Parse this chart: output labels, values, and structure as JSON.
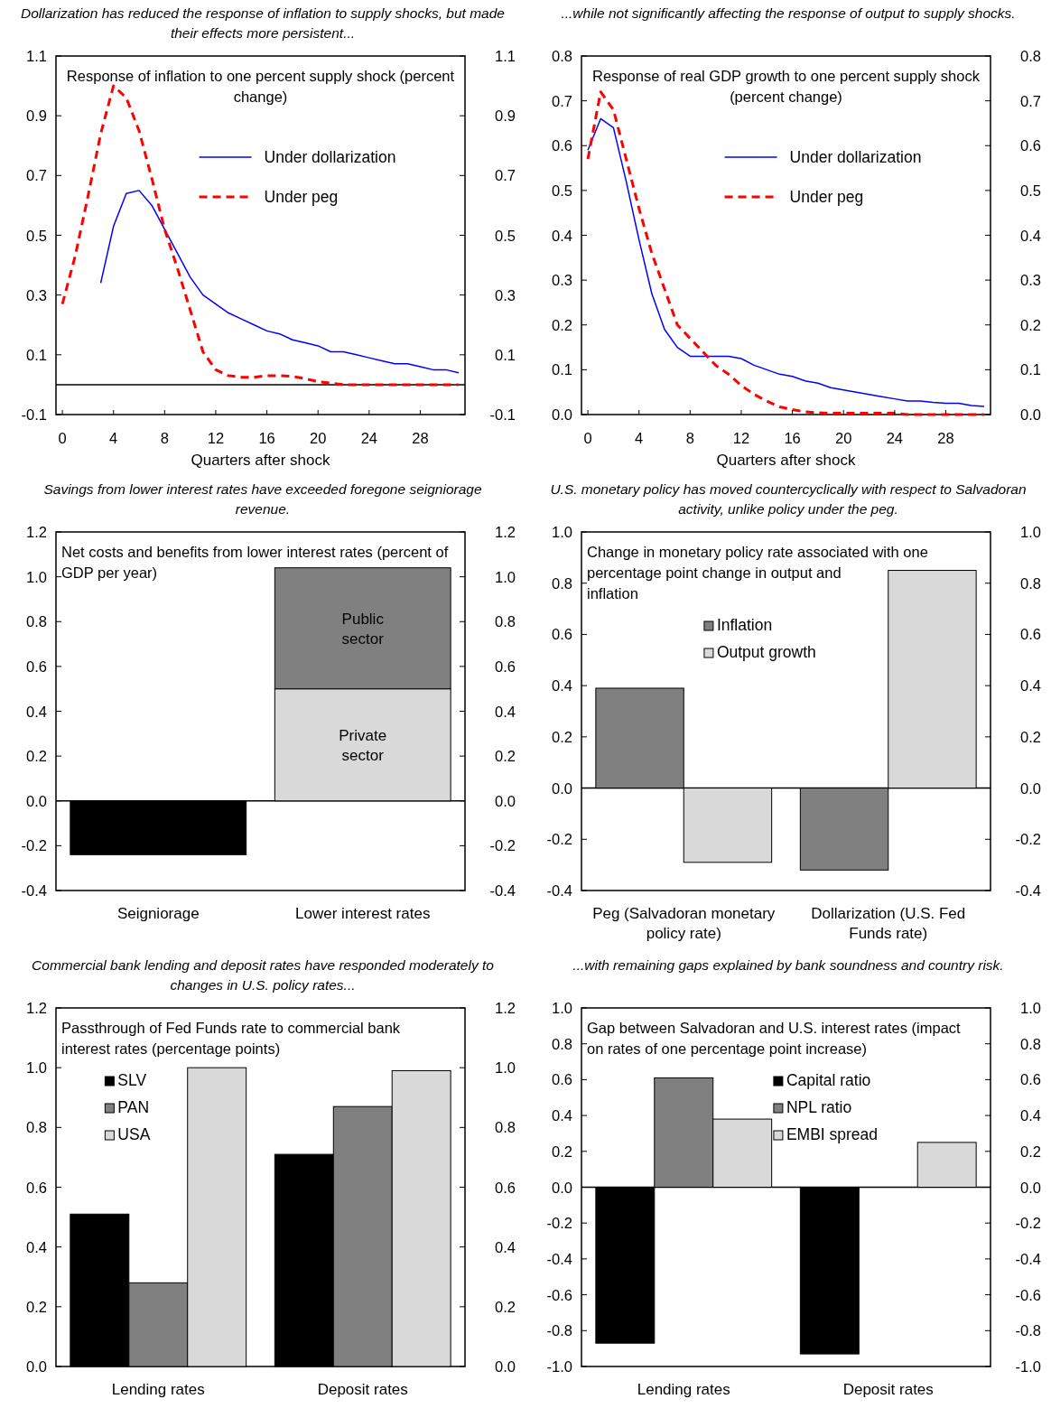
{
  "chart_data": [
    {
      "type": "line",
      "title": "Dollarization has reduced the response of inflation to supply shocks, but made their effects more persistent...",
      "subtitle": "Response of inflation to one percent supply shock (percent change)",
      "xlabel": "Quarters after shock",
      "xlim": [
        -0.5,
        31.5
      ],
      "xticks": [
        0,
        4,
        8,
        12,
        16,
        20,
        24,
        28
      ],
      "ylim": [
        -0.1,
        1.1
      ],
      "yticks": [
        -0.1,
        0.1,
        0.3,
        0.5,
        0.7,
        0.9,
        1.1
      ],
      "y2lim": [
        -0.1,
        1.1
      ],
      "y2ticks": [
        -0.1,
        0.1,
        0.3,
        0.5,
        0.7,
        0.9,
        1.1
      ],
      "legend": "top right",
      "x": [
        0,
        1,
        2,
        3,
        4,
        5,
        6,
        7,
        8,
        9,
        10,
        11,
        12,
        13,
        14,
        15,
        16,
        17,
        18,
        19,
        20,
        21,
        22,
        23,
        24,
        25,
        26,
        27,
        28,
        29,
        30,
        31
      ],
      "series": [
        {
          "name": "Under dollarization",
          "color": "#0000ff",
          "line_style": "solid",
          "values": [
            null,
            null,
            null,
            0.34,
            0.53,
            0.64,
            0.65,
            0.6,
            0.52,
            0.44,
            0.36,
            0.3,
            0.27,
            0.24,
            0.22,
            0.2,
            0.18,
            0.17,
            0.15,
            0.14,
            0.13,
            0.11,
            0.11,
            0.1,
            0.09,
            0.08,
            0.07,
            0.07,
            0.06,
            0.05,
            0.05,
            0.04
          ]
        },
        {
          "name": "Under peg",
          "color": "#ff0000",
          "line_style": "dashed",
          "values": [
            0.27,
            0.43,
            0.63,
            0.84,
            1.0,
            0.96,
            0.85,
            0.69,
            0.52,
            0.39,
            0.25,
            0.11,
            0.05,
            0.03,
            0.025,
            0.025,
            0.03,
            0.03,
            0.028,
            0.02,
            0.01,
            0.005,
            0.0,
            0.0,
            0.0,
            0.0,
            0.0,
            0.0,
            0.0,
            0.0,
            0.0,
            0.0
          ]
        }
      ]
    },
    {
      "type": "line",
      "title": "...while not significantly affecting the response of output to supply shocks.",
      "subtitle": "Response of real GDP growth to one percent supply shock (percent change)",
      "xlabel": "Quarters after shock",
      "xlim": [
        -0.5,
        31.5
      ],
      "xticks": [
        0,
        4,
        8,
        12,
        16,
        20,
        24,
        28
      ],
      "ylim": [
        0,
        0.8
      ],
      "yticks": [
        {
          "value": 0,
          "label": "0.0"
        },
        0.1,
        0.2,
        0.3,
        0.4,
        0.5,
        0.6,
        0.7,
        0.8
      ],
      "y2lim": [
        0,
        0.8
      ],
      "y2ticks": [
        {
          "value": 0,
          "label": "0.0"
        },
        0.1,
        0.2,
        0.3,
        0.4,
        0.5,
        0.6,
        0.7,
        0.8
      ],
      "legend": "top right",
      "x": [
        0,
        1,
        2,
        3,
        4,
        5,
        6,
        7,
        8,
        9,
        10,
        11,
        12,
        13,
        14,
        15,
        16,
        17,
        18,
        19,
        20,
        21,
        22,
        23,
        24,
        25,
        26,
        27,
        28,
        29,
        30,
        31
      ],
      "series": [
        {
          "name": "Under dollarization",
          "color": "#0000ff",
          "line_style": "solid",
          "values": [
            0.59,
            0.66,
            0.64,
            0.52,
            0.39,
            0.27,
            0.19,
            0.15,
            0.13,
            0.13,
            0.13,
            0.13,
            0.125,
            0.11,
            0.1,
            0.09,
            0.085,
            0.075,
            0.07,
            0.06,
            0.055,
            0.05,
            0.045,
            0.04,
            0.035,
            0.03,
            0.03,
            0.027,
            0.025,
            0.025,
            0.02,
            0.018
          ]
        },
        {
          "name": "Under peg",
          "color": "#ff0000",
          "line_style": "dashed",
          "values": [
            0.57,
            0.72,
            0.68,
            0.57,
            0.46,
            0.36,
            0.28,
            0.2,
            0.17,
            0.14,
            0.11,
            0.09,
            0.065,
            0.045,
            0.03,
            0.017,
            0.011,
            0.006,
            0.004,
            0.003,
            0.003,
            0.003,
            0.003,
            0.003,
            0.003,
            0.0,
            0.0,
            0.0,
            0.0,
            0.0,
            0.0,
            0.0
          ]
        }
      ]
    },
    {
      "type": "bar",
      "stacked": true,
      "title": "Savings from lower interest rates have exceeded foregone seigniorage revenue.",
      "subtitle": "Net costs and benefits from lower interest rates (percent of GDP per year)",
      "categories": [
        "Seigniorage",
        "Lower interest rates"
      ],
      "ylim": [
        -0.4,
        1.2
      ],
      "yticks": [
        -0.4,
        -0.2,
        {
          "value": 0,
          "label": "0.0"
        },
        0.2,
        0.4,
        0.6,
        0.8,
        {
          "value": 1,
          "label": "1.0"
        },
        1.2
      ],
      "y2lim": [
        -0.4,
        1.2
      ],
      "y2ticks": [
        -0.4,
        -0.2,
        {
          "value": 0,
          "label": "0.0"
        },
        0.2,
        0.4,
        0.6,
        0.8,
        {
          "value": 1,
          "label": "1.0"
        },
        1.2
      ],
      "legend": false,
      "series": [
        {
          "color": "#000000",
          "values": [
            -0.24,
            null
          ]
        },
        {
          "name": "Private sector",
          "color": "#d9d9d9",
          "values": [
            null,
            0.5
          ]
        },
        {
          "name": "Public sector",
          "color": "#808080",
          "values": [
            null,
            0.54
          ]
        }
      ]
    },
    {
      "type": "bar",
      "title": "U.S. monetary policy has moved countercyclically with respect to Salvadoran activity, unlike policy under the peg.",
      "subtitle": "Change in monetary policy rate associated with one percentage point change in output and inflation",
      "categories": [
        "Peg (Salvadoran monetary policy rate)",
        "Dollarization (U.S. Fed Funds rate)"
      ],
      "ylim": [
        -0.4,
        1.0
      ],
      "yticks": [
        -0.4,
        -0.2,
        {
          "value": 0,
          "label": "0.0"
        },
        0.2,
        0.4,
        0.6,
        0.8,
        {
          "value": 1,
          "label": "1.0"
        }
      ],
      "y2lim": [
        -0.4,
        1.0
      ],
      "y2ticks": [
        -0.4,
        -0.2,
        {
          "value": 0,
          "label": "0.0"
        },
        0.2,
        0.4,
        0.6,
        0.8,
        {
          "value": 1,
          "label": "1.0"
        }
      ],
      "legend": "top",
      "series": [
        {
          "name": "Inflation",
          "color": "#808080",
          "values": [
            0.39,
            -0.32
          ]
        },
        {
          "name": "Output growth",
          "color": "#d9d9d9",
          "values": [
            -0.29,
            0.85
          ]
        }
      ]
    },
    {
      "type": "bar",
      "title": "Commercial bank lending and deposit rates have responded moderately to changes in U.S. policy rates...",
      "subtitle": "Passthrough of Fed Funds rate to commercial bank interest rates (percentage points)",
      "categories": [
        "Lending rates",
        "Deposit rates"
      ],
      "ylim": [
        0,
        1.2
      ],
      "yticks": [
        {
          "value": 0,
          "label": "0.0"
        },
        0.2,
        0.4,
        0.6,
        0.8,
        {
          "value": 1,
          "label": "1.0"
        },
        1.2
      ],
      "y2lim": [
        0,
        1.2
      ],
      "y2ticks": [
        {
          "value": 0,
          "label": "0.0"
        },
        0.2,
        0.4,
        0.6,
        0.8,
        {
          "value": 1,
          "label": "1.0"
        },
        1.2
      ],
      "legend": "top left",
      "series": [
        {
          "name": "SLV",
          "color": "#000000",
          "values": [
            0.51,
            0.71
          ]
        },
        {
          "name": "PAN",
          "color": "#808080",
          "values": [
            0.28,
            0.87
          ]
        },
        {
          "name": "USA",
          "color": "#d9d9d9",
          "values": [
            1.0,
            0.99
          ]
        }
      ]
    },
    {
      "type": "bar",
      "title": "...with remaining gaps explained by bank soundness and country risk.",
      "subtitle": "Gap between Salvadoran and U.S. interest rates (impact on rates of one percentage point increase)",
      "categories": [
        "Lending rates",
        "Deposit rates"
      ],
      "ylim": [
        -1.0,
        1.0
      ],
      "yticks": [
        {
          "value": -1,
          "label": "-1.0"
        },
        -0.8,
        -0.6,
        -0.4,
        -0.2,
        {
          "value": 0,
          "label": "0.0"
        },
        0.2,
        0.4,
        0.6,
        0.8,
        {
          "value": 1,
          "label": "1.0"
        }
      ],
      "y2ticks": [
        {
          "value": -1,
          "label": "-1.0"
        },
        -0.8,
        -0.6,
        -0.4,
        -0.2,
        {
          "value": 0,
          "label": "0.0"
        },
        0.2,
        0.4,
        0.6,
        0.8,
        {
          "value": 1,
          "label": "1.0"
        }
      ],
      "y2lim": [
        -1.0,
        1.0
      ],
      "legend": "top right",
      "series": [
        {
          "name": "Capital ratio",
          "color": "#000000",
          "values": [
            -0.87,
            -0.93
          ]
        },
        {
          "name": "NPL ratio",
          "color": "#808080",
          "values": [
            0.61,
            null
          ]
        },
        {
          "name": "EMBI spread",
          "color": "#d9d9d9",
          "values": [
            0.38,
            0.25
          ]
        }
      ]
    }
  ]
}
